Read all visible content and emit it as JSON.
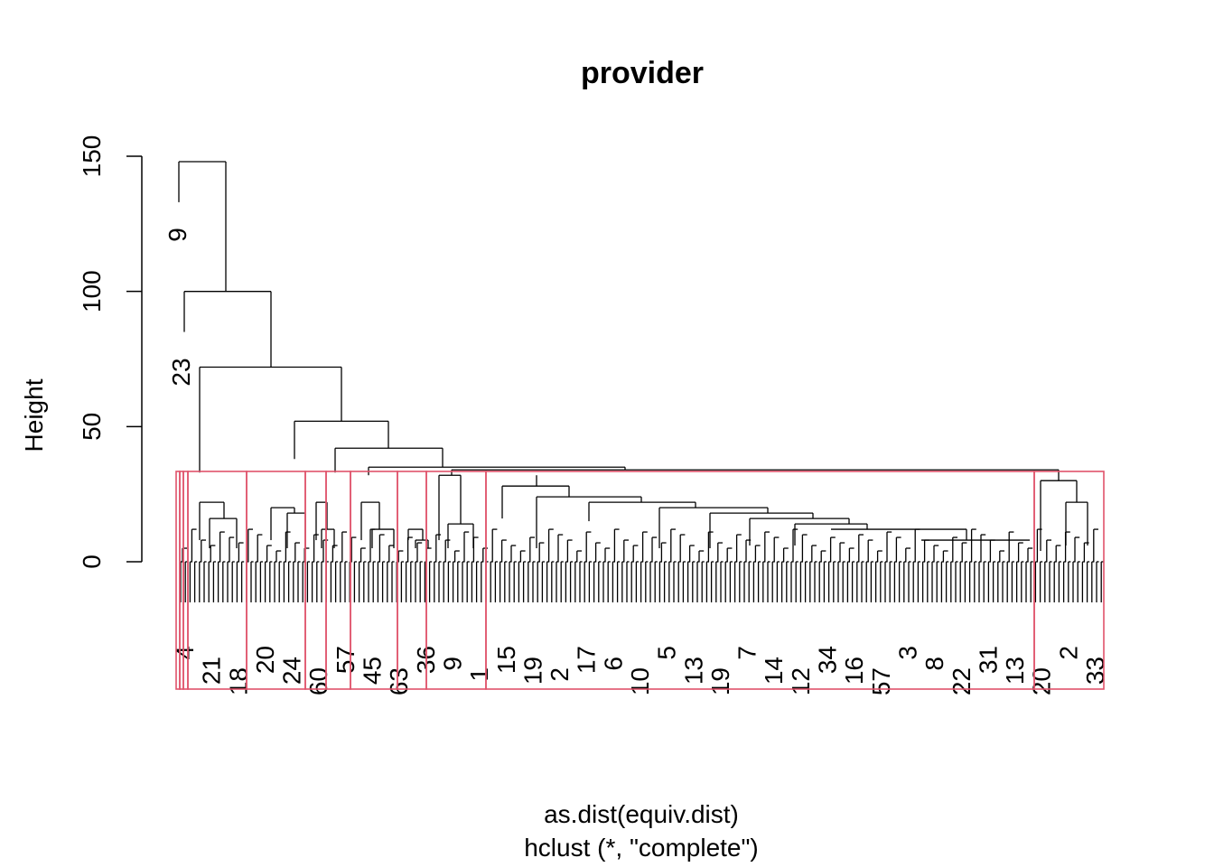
{
  "chart_data": {
    "type": "dendrogram",
    "title": "provider",
    "xlabel": "as.dist(equiv.dist)",
    "sublabel": "hclust (*, \"complete\")",
    "ylabel": "Height",
    "yticks": [
      "0",
      "50",
      "100",
      "150"
    ],
    "ylim": [
      0,
      150
    ],
    "rect_color": "#DF536B",
    "line_color": "#000000",
    "merges": [
      {
        "height": 148,
        "left": "9",
        "right": "rest"
      },
      {
        "height": 100,
        "left": "23",
        "right": "rest"
      },
      {
        "height": 72
      },
      {
        "height": 52
      },
      {
        "height": 42
      },
      {
        "height": 38
      },
      {
        "height": 35
      },
      {
        "height": 33
      },
      {
        "height": 32
      },
      {
        "height": 30
      },
      {
        "height": 28
      },
      {
        "height": 24
      },
      {
        "height": 22
      },
      {
        "height": 20
      },
      {
        "height": 18
      },
      {
        "height": 16
      },
      {
        "height": 14
      },
      {
        "height": 12
      },
      {
        "height": 8
      },
      {
        "height": 4
      }
    ],
    "cluster_cut_height": 33,
    "cluster_count": 14
  },
  "leaf_labels": {
    "big": [
      "9",
      "23"
    ],
    "small": [
      "4",
      "21",
      "18",
      "20",
      "24",
      "60",
      "57",
      "45",
      "63",
      "36",
      "9",
      "1",
      "15",
      "19",
      "2",
      "17",
      "6",
      "10",
      "5",
      "13",
      "19",
      "7",
      "14",
      "12",
      "34",
      "16",
      "57",
      "3",
      "8",
      "22",
      "31",
      "13",
      "20",
      "2",
      "33"
    ]
  }
}
